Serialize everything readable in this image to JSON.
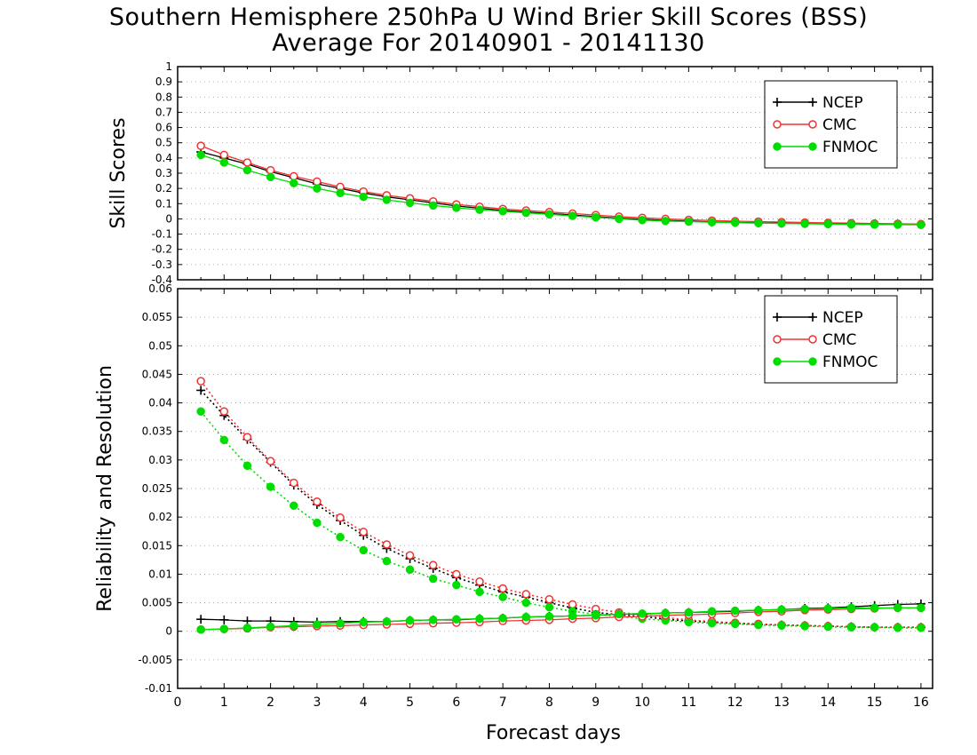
{
  "header": {
    "title_line1": "Southern Hemisphere 250hPa U Wind Brier Skill Scores (BSS)",
    "title_line2": "Average For 20140901 - 20141130"
  },
  "chart_data": [
    {
      "type": "line",
      "panel": "top",
      "ylabel": "Skill Scores",
      "ylim": [
        -0.4,
        1.0
      ],
      "yticks": [
        -0.4,
        -0.3,
        -0.2,
        -0.1,
        0,
        0.1,
        0.2,
        0.3,
        0.4,
        0.5,
        0.6,
        0.7,
        0.8,
        0.9,
        1
      ],
      "ytick_labels": [
        "-0.4",
        "-0.3",
        "-0.2",
        "-0.1",
        "0",
        "0.1",
        "0.2",
        "0.3",
        "0.4",
        "0.5",
        "0.6",
        "0.7",
        "0.8",
        "0.9",
        "1"
      ],
      "xlim": [
        0,
        16.25
      ],
      "grid": true,
      "legend_position": "top-right",
      "x": [
        0.5,
        1,
        1.5,
        2,
        2.5,
        3,
        3.5,
        4,
        4.5,
        5,
        5.5,
        6,
        6.5,
        7,
        7.5,
        8,
        8.5,
        9,
        9.5,
        10,
        10.5,
        11,
        11.5,
        12,
        12.5,
        13,
        13.5,
        14,
        14.5,
        15,
        15.5,
        16
      ],
      "series": [
        {
          "name": "NCEP",
          "color": "#000000",
          "marker": "plus",
          "values": [
            0.44,
            0.4,
            0.36,
            0.31,
            0.27,
            0.23,
            0.2,
            0.17,
            0.145,
            0.125,
            0.105,
            0.085,
            0.07,
            0.055,
            0.045,
            0.035,
            0.025,
            0.015,
            0.005,
            -0.003,
            -0.01,
            -0.015,
            -0.02,
            -0.023,
            -0.026,
            -0.028,
            -0.03,
            -0.032,
            -0.034,
            -0.035,
            -0.036,
            -0.037
          ]
        },
        {
          "name": "CMC",
          "color": "#ee3333",
          "marker": "open-circle",
          "values": [
            0.48,
            0.42,
            0.37,
            0.32,
            0.28,
            0.245,
            0.21,
            0.18,
            0.155,
            0.135,
            0.115,
            0.095,
            0.08,
            0.065,
            0.055,
            0.045,
            0.035,
            0.025,
            0.015,
            0.007,
            0,
            -0.006,
            -0.011,
            -0.015,
            -0.018,
            -0.021,
            -0.024,
            -0.026,
            -0.028,
            -0.03,
            -0.032,
            -0.034
          ]
        },
        {
          "name": "FNMOC",
          "color": "#00dd00",
          "marker": "filled-circle",
          "values": [
            0.42,
            0.37,
            0.32,
            0.275,
            0.235,
            0.2,
            0.17,
            0.145,
            0.125,
            0.105,
            0.088,
            0.073,
            0.06,
            0.05,
            0.04,
            0.03,
            0.02,
            0.01,
            0,
            -0.008,
            -0.014,
            -0.018,
            -0.022,
            -0.025,
            -0.028,
            -0.03,
            -0.032,
            -0.034,
            -0.036,
            -0.037,
            -0.038,
            -0.039
          ]
        }
      ]
    },
    {
      "type": "line",
      "panel": "bottom",
      "ylabel": "Reliability and Resolution",
      "xlabel": "Forecast days",
      "ylim": [
        -0.01,
        0.06
      ],
      "yticks": [
        -0.01,
        -0.005,
        0,
        0.005,
        0.01,
        0.015,
        0.02,
        0.025,
        0.03,
        0.035,
        0.04,
        0.045,
        0.05,
        0.055,
        0.06
      ],
      "ytick_labels": [
        "-0.01",
        "-0.005",
        "0",
        "0.005",
        "0.01",
        "0.015",
        "0.02",
        "0.025",
        "0.03",
        "0.035",
        "0.04",
        "0.045",
        "0.05",
        "0.055",
        "0.06"
      ],
      "xlim": [
        0,
        16.25
      ],
      "xticks": [
        0,
        1,
        2,
        3,
        4,
        5,
        6,
        7,
        8,
        9,
        10,
        11,
        12,
        13,
        14,
        15,
        16
      ],
      "xtick_labels": [
        "0",
        "1",
        "2",
        "3",
        "4",
        "5",
        "6",
        "7",
        "8",
        "9",
        "10",
        "11",
        "12",
        "13",
        "14",
        "15",
        "16"
      ],
      "grid": true,
      "legend_position": "top-right",
      "x": [
        0.5,
        1,
        1.5,
        2,
        2.5,
        3,
        3.5,
        4,
        4.5,
        5,
        5.5,
        6,
        6.5,
        7,
        7.5,
        8,
        8.5,
        9,
        9.5,
        10,
        10.5,
        11,
        11.5,
        12,
        12.5,
        13,
        13.5,
        14,
        14.5,
        15,
        15.5,
        16
      ],
      "series": [
        {
          "name": "NCEP",
          "group": "reliability",
          "color": "#000000",
          "marker": "plus",
          "line": "dotted",
          "values": [
            0.0422,
            0.0378,
            0.0336,
            0.0296,
            0.0256,
            0.0222,
            0.0194,
            0.0168,
            0.0145,
            0.0127,
            0.011,
            0.0094,
            0.0081,
            0.0069,
            0.006,
            0.005,
            0.0041,
            0.0033,
            0.0029,
            0.0026,
            0.0021,
            0.0018,
            0.0016,
            0.0014,
            0.0012,
            0.0011,
            0.001,
            0.0009,
            0.0008,
            0.0007,
            0.0007,
            0.0007
          ]
        },
        {
          "name": "CMC",
          "group": "reliability",
          "color": "#ee3333",
          "marker": "open-circle",
          "line": "dotted",
          "values": [
            0.0438,
            0.0385,
            0.034,
            0.0298,
            0.026,
            0.0227,
            0.0199,
            0.0174,
            0.0152,
            0.0133,
            0.0116,
            0.01,
            0.0087,
            0.0075,
            0.0065,
            0.0056,
            0.0047,
            0.0039,
            0.0033,
            0.0029,
            0.0024,
            0.002,
            0.0017,
            0.0015,
            0.0013,
            0.0011,
            0.001,
            0.0009,
            0.0008,
            0.0007,
            0.0007,
            0.0007
          ]
        },
        {
          "name": "FNMOC",
          "group": "reliability",
          "color": "#00dd00",
          "marker": "filled-circle",
          "line": "dotted",
          "values": [
            0.0385,
            0.0335,
            0.029,
            0.0253,
            0.022,
            0.019,
            0.0165,
            0.0142,
            0.0123,
            0.0108,
            0.0092,
            0.0081,
            0.0069,
            0.006,
            0.005,
            0.0042,
            0.0035,
            0.003,
            0.0026,
            0.0022,
            0.0019,
            0.0016,
            0.0014,
            0.0013,
            0.0011,
            0.001,
            0.0009,
            0.0008,
            0.0007,
            0.0007,
            0.0006,
            0.0006
          ]
        },
        {
          "name": "NCEP",
          "group": "resolution",
          "color": "#000000",
          "marker": "plus",
          "line": "solid",
          "values": [
            0.0021,
            0.002,
            0.0018,
            0.0018,
            0.0017,
            0.0016,
            0.0017,
            0.0017,
            0.0017,
            0.0019,
            0.002,
            0.002,
            0.0022,
            0.0023,
            0.0025,
            0.0026,
            0.0027,
            0.0028,
            0.003,
            0.003,
            0.0032,
            0.0033,
            0.0034,
            0.0035,
            0.0037,
            0.0038,
            0.004,
            0.0041,
            0.0043,
            0.0045,
            0.0047,
            0.0048
          ]
        },
        {
          "name": "CMC",
          "group": "resolution",
          "color": "#ee3333",
          "marker": "open-circle",
          "line": "solid",
          "values": [
            0.0003,
            0.0004,
            0.0005,
            0.0007,
            0.0008,
            0.0009,
            0.001,
            0.0011,
            0.0012,
            0.0013,
            0.0014,
            0.0015,
            0.0016,
            0.0018,
            0.0019,
            0.002,
            0.0022,
            0.0023,
            0.0025,
            0.0026,
            0.0028,
            0.0029,
            0.003,
            0.0032,
            0.0034,
            0.0035,
            0.0037,
            0.0038,
            0.0039,
            0.004,
            0.0041,
            0.0041
          ]
        },
        {
          "name": "FNMOC",
          "group": "resolution",
          "color": "#00dd00",
          "marker": "filled-circle",
          "line": "solid",
          "values": [
            0.0003,
            0.0004,
            0.0006,
            0.0008,
            0.001,
            0.0012,
            0.0014,
            0.0016,
            0.0017,
            0.0019,
            0.002,
            0.0021,
            0.0022,
            0.0023,
            0.0025,
            0.0026,
            0.0027,
            0.0028,
            0.003,
            0.0031,
            0.0032,
            0.0033,
            0.0035,
            0.0036,
            0.0037,
            0.0038,
            0.0039,
            0.004,
            0.0041,
            0.0041,
            0.0041,
            0.0041
          ]
        }
      ]
    }
  ]
}
